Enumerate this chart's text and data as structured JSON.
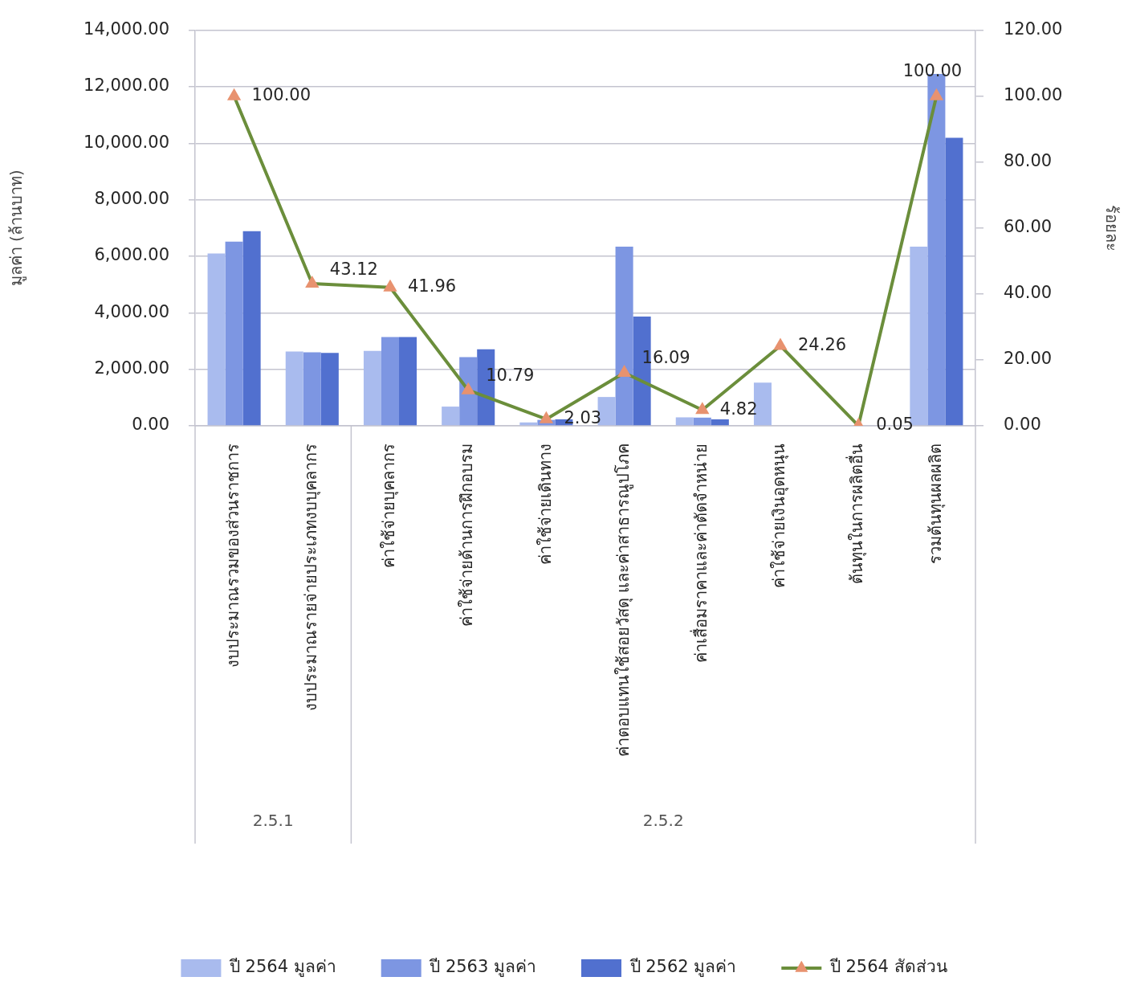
{
  "chart_data": {
    "type": "bar",
    "categories": [
      "งบประมาณรวมของส่วนราชการ",
      "งบประมาณรายจ่ายประเภทงบบุคลากร",
      "ค่าใช้จ่ายบุคลากร",
      "ค่าใช้จ่ายด้านการฝึกอบรม",
      "ค่าใช้จ่ายเดินทาง",
      "ค่าตอบแทนใช้สอยวัสดุ และค่าสาธารณูปโภค",
      "ค่าเสื่อมราคาและค่าตัดจำหน่าย",
      "ค่าใช้จ่ายเงินอุดหนุน",
      "ต้นทุนในการผลิตอื่น",
      "รวมต้นทุนผลผลิต"
    ],
    "series": [
      {
        "name": "ปี 2564 มูลค่า",
        "color": "#a9bbee",
        "values": [
          6100,
          2630,
          2650,
          680,
          120,
          1020,
          300,
          1530,
          null,
          6340
        ]
      },
      {
        "name": "ปี 2563 มูลค่า",
        "color": "#7d96e2",
        "values": [
          6520,
          2600,
          3140,
          2430,
          210,
          6340,
          290,
          null,
          null,
          12450
        ]
      },
      {
        "name": "ปี 2562 มูลค่า",
        "color": "#5170cf",
        "values": [
          6890,
          2580,
          3140,
          2710,
          230,
          3870,
          230,
          null,
          null,
          10190
        ]
      },
      {
        "name": "ปี 2564 สัดส่วน",
        "type": "line",
        "axis": "y2",
        "color": "#6b8e3b",
        "colors": [
          "#e8926f",
          "#e8926f",
          "#e8926f",
          "#e8926f",
          "#e8926f",
          "#e8926f",
          "#e8926f",
          "#e8926f",
          "#e8926f",
          "#e8926f"
        ],
        "values": [
          100,
          43.12,
          41.96,
          10.79,
          2.03,
          16.09,
          4.82,
          24.26,
          0.05,
          100
        ],
        "value_labels": [
          "100.00",
          "43.12",
          "41.96",
          "10.79",
          "2.03",
          "16.09",
          "4.82",
          "24.26",
          "0.05",
          "100.00"
        ]
      }
    ],
    "ylabel": "มูลค่า (ล้านบาท)",
    "y2label": "ร้อยละ",
    "ylim": [
      0,
      14000
    ],
    "yticks": [
      {
        "value": 0,
        "label": "0.00"
      },
      {
        "value": 2000,
        "label": "2,000.00"
      },
      {
        "value": 4000,
        "label": "4,000.00"
      },
      {
        "value": 6000,
        "label": "6,000.00"
      },
      {
        "value": 8000,
        "label": "8,000.00"
      },
      {
        "value": 10000,
        "label": "10,000.00"
      },
      {
        "value": 12000,
        "label": "12,000.00"
      },
      {
        "value": 14000,
        "label": "14,000.00"
      }
    ],
    "y2lim": [
      0,
      120
    ],
    "y2ticks": [
      {
        "value": 0,
        "label": "0.00"
      },
      {
        "value": 20,
        "label": "20.00"
      },
      {
        "value": 40,
        "label": "40.00"
      },
      {
        "value": 60,
        "label": "60.00"
      },
      {
        "value": 80,
        "label": "80.00"
      },
      {
        "value": 100,
        "label": "100.00"
      },
      {
        "value": 120,
        "label": "120.00"
      }
    ],
    "grid": "y",
    "legend": "bottom",
    "marker": "triangle",
    "line_style": "solid",
    "annotations": [
      "2.5.1",
      "2.5.2"
    ]
  }
}
